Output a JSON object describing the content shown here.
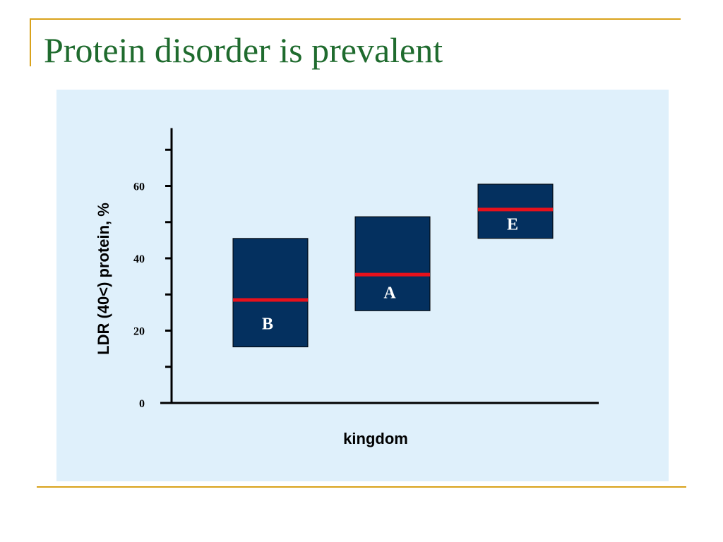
{
  "slide": {
    "title": "Protein disorder is prevalent"
  },
  "colors": {
    "accent_rule": "#d9a21b",
    "title": "#1f6b2e",
    "panel_background": "#dff0fb",
    "box_fill": "#04305f",
    "median_line": "#e8111b",
    "box_label": "#ffffff"
  },
  "chart_data": {
    "type": "box",
    "xlabel": "kingdom",
    "ylabel": "LDR (40<) protein, %",
    "ylim": [
      0,
      76
    ],
    "yticks": [
      0,
      20,
      40,
      60
    ],
    "ytick_labels": [
      "0",
      "20",
      "40",
      "60"
    ],
    "grid": false,
    "boxes": [
      {
        "label": "B",
        "low": 15.5,
        "high": 45.5,
        "median": 28.5
      },
      {
        "label": "A",
        "low": 25.5,
        "high": 51.5,
        "median": 35.5
      },
      {
        "label": "E",
        "low": 45.5,
        "high": 60.5,
        "median": 53.5
      }
    ]
  }
}
